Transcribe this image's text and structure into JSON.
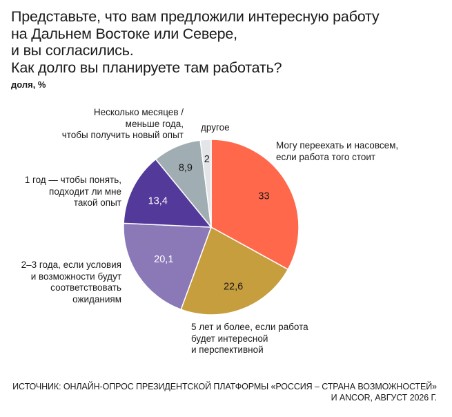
{
  "title_lines": [
    "Представьте, что вам предложили интересную работу",
    "на Дальнем Востоке или Севере,",
    "и вы согласились.",
    "Как долго вы планируете там работать?"
  ],
  "unit": "доля, %",
  "chart_data": {
    "type": "pie",
    "start_angle_deg": 0,
    "direction": "clockwise",
    "slices": [
      {
        "label_lines": [
          "Могу переехать и насовсем,",
          "если работа того стоит"
        ],
        "value": 33,
        "value_label": "33",
        "color": "#ff684b",
        "value_color": "#1a1a1a"
      },
      {
        "label_lines": [
          "5 лет и более, если работа",
          "будет интересной",
          "и перспективной"
        ],
        "value": 22.6,
        "value_label": "22,6",
        "color": "#c79e3d",
        "value_color": "#1a1a1a"
      },
      {
        "label_lines": [
          "2–3 года, если условия",
          "и возможности будут",
          "соответствовать",
          "ожиданиям"
        ],
        "value": 20.1,
        "value_label": "20,1",
        "color": "#8a78b7",
        "value_color": "#ffffff"
      },
      {
        "label_lines": [
          "1 год — чтобы понять,",
          "подходит ли мне",
          "такой опыт"
        ],
        "value": 13.4,
        "value_label": "13,4",
        "color": "#53399a",
        "value_color": "#ffffff"
      },
      {
        "label_lines": [
          "Несколько месяцев /",
          "меньше года,",
          "чтобы получить новый опыт"
        ],
        "value": 8.9,
        "value_label": "8,9",
        "color": "#a0adb3",
        "value_color": "#1a1a1a"
      },
      {
        "label_lines": [
          "другое"
        ],
        "value": 2,
        "value_label": "2",
        "color": "#e3e6e8",
        "value_color": "#1a1a1a"
      }
    ]
  },
  "source_lines": [
    "Источник: онлайн-опрос президентской платформы «Россия – страна возможностей»",
    "и ANCOR, август 2026 г."
  ]
}
